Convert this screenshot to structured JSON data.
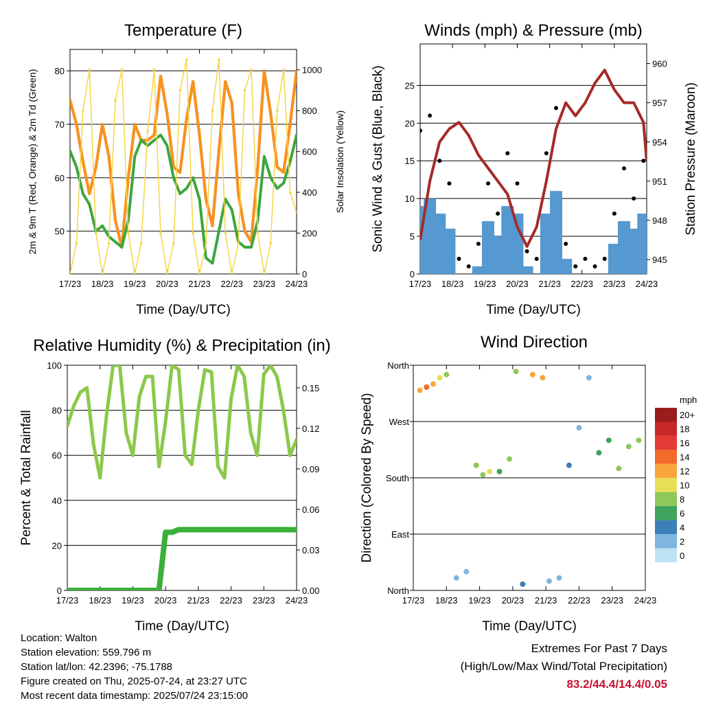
{
  "info": {
    "location": "Location: Walton",
    "elevation": "Station elevation: 559.796 m",
    "latlon": "Station lat/lon: 42.2396; -75.1788",
    "created": "Figure created on Thu, 2025-07-24, at 23:27 UTC",
    "recent": "Most recent data timestamp: 2025/07/24 23:15:00"
  },
  "extremes": {
    "title": "Extremes For Past 7 Days",
    "subtitle": "(High/Low/Max Wind/Total Precipitation)",
    "values": "83.2/44.4/14.4/0.05",
    "color": "#c8102e"
  },
  "x_ticks": [
    "17/23",
    "18/23",
    "19/23",
    "20/23",
    "21/23",
    "22/23",
    "23/23",
    "24/23"
  ],
  "x_label": "Time (Day/UTC)",
  "colorbar": {
    "unit": "mph",
    "labels": [
      "20+",
      "18",
      "16",
      "14",
      "12",
      "10",
      "8",
      "6",
      "4",
      "2",
      "0"
    ],
    "colors": [
      "#9b1c1c",
      "#c62828",
      "#e53935",
      "#f26b2a",
      "#f9a53c",
      "#e8df55",
      "#8fc85a",
      "#3ea35c",
      "#3d7fb8",
      "#7eb6df",
      "#bfe3f5"
    ]
  },
  "chart_data": [
    {
      "type": "line",
      "title": "Temperature (F)",
      "xlabel": "Time (Day/UTC)",
      "ylabel": "2m & 9m T (Red, Orange) & 2m Td (Green)",
      "y2label": "Solar Insolation (Yellow)",
      "ylim": [
        42,
        84
      ],
      "yticks": [
        "50",
        "60",
        "70",
        "80"
      ],
      "y2lim": [
        0,
        1100
      ],
      "y2ticks": [
        "0",
        "200",
        "400",
        "600",
        "800",
        "1000"
      ],
      "grid": true,
      "x": [
        0,
        0.2,
        0.4,
        0.6,
        0.8,
        1.0,
        1.2,
        1.4,
        1.6,
        1.8,
        2.0,
        2.2,
        2.4,
        2.6,
        2.8,
        3.0,
        3.2,
        3.4,
        3.6,
        3.8,
        4.0,
        4.2,
        4.4,
        4.6,
        4.8,
        5.0,
        5.2,
        5.4,
        5.6,
        5.8,
        6.0,
        6.2,
        6.4,
        6.6,
        6.8,
        7.0
      ],
      "series": [
        {
          "color": "#d62728",
          "values": [
            74.5,
            70,
            63,
            57,
            62,
            70,
            64,
            52,
            47,
            60,
            70,
            67,
            67,
            68,
            79,
            72,
            62,
            61,
            71,
            78,
            68,
            56,
            51,
            65,
            78,
            74,
            57,
            50,
            48,
            62,
            80,
            72,
            62,
            61,
            70,
            80
          ]
        },
        {
          "color": "#f7941d",
          "values": [
            74.5,
            70,
            63,
            57,
            62,
            70,
            64,
            52,
            47,
            60,
            70,
            67,
            67,
            68,
            79,
            72,
            62,
            61,
            71,
            78,
            68,
            56,
            51,
            65,
            78,
            74,
            57,
            50,
            48,
            62,
            80,
            72,
            62,
            61,
            70,
            80
          ]
        },
        {
          "color": "#3da63d",
          "values": [
            65,
            62,
            57,
            55,
            50,
            51,
            49,
            48,
            47,
            52,
            64,
            67,
            66,
            67,
            68,
            66,
            60,
            57,
            58,
            60,
            56,
            45,
            44,
            50,
            56,
            54,
            48,
            47,
            47,
            52,
            64,
            60,
            58,
            59,
            63,
            68
          ]
        },
        {
          "color": "#f5d547",
          "axis": "y2",
          "values": [
            0,
            150,
            800,
            1000,
            200,
            0,
            150,
            850,
            1000,
            200,
            0,
            150,
            700,
            1000,
            200,
            0,
            150,
            900,
            1050,
            200,
            0,
            150,
            800,
            1050,
            200,
            0,
            150,
            900,
            1000,
            200,
            0,
            150,
            800,
            1000,
            400,
            300
          ]
        }
      ]
    },
    {
      "type": "scatter",
      "title": "Winds (mph) & Pressure (mb)",
      "xlabel": "Time (Day/UTC)",
      "ylabel": "Sonic Wind & Gust (Blue, Black)",
      "y2label": "Station Pressure (Maroon)",
      "ylim": [
        0,
        30.5
      ],
      "yticks": [
        "0",
        "5",
        "10",
        "15",
        "20",
        "25"
      ],
      "y2lim": [
        943.9,
        961.5
      ],
      "y2ticks": [
        "945",
        "948",
        "951",
        "954",
        "957",
        "960"
      ],
      "grid": true,
      "series": [
        {
          "name": "gust",
          "color": "#000000",
          "x": [
            0,
            0.3,
            0.6,
            0.9,
            1.2,
            1.5,
            1.8,
            2.1,
            2.4,
            2.7,
            3.0,
            3.3,
            3.6,
            3.9,
            4.2,
            4.5,
            4.8,
            5.1,
            5.4,
            5.7,
            6.0,
            6.3,
            6.6,
            6.9
          ],
          "values": [
            19,
            21,
            15,
            12,
            2,
            1,
            4,
            12,
            8,
            16,
            12,
            3,
            2,
            16,
            22,
            4,
            1,
            2,
            1,
            2,
            8,
            14,
            10,
            15
          ]
        },
        {
          "name": "wind",
          "color": "#5599d0",
          "x": [
            0,
            0.3,
            0.6,
            0.9,
            1.2,
            1.5,
            1.8,
            2.1,
            2.4,
            2.7,
            3.0,
            3.3,
            3.6,
            3.9,
            4.2,
            4.5,
            4.8,
            5.1,
            5.4,
            5.7,
            6.0,
            6.3,
            6.6,
            6.9
          ],
          "values": [
            9,
            10,
            8,
            6,
            0,
            0,
            1,
            7,
            5,
            9,
            8,
            1,
            0,
            8,
            11,
            2,
            0,
            0,
            0,
            0,
            4,
            7,
            6,
            8
          ]
        },
        {
          "name": "pressure",
          "color": "#a52a2a",
          "axis": "y2",
          "x": [
            0,
            0.3,
            0.6,
            0.9,
            1.2,
            1.5,
            1.8,
            2.1,
            2.4,
            2.7,
            3.0,
            3.3,
            3.6,
            3.9,
            4.2,
            4.5,
            4.8,
            5.1,
            5.4,
            5.7,
            6.0,
            6.3,
            6.6,
            6.9,
            7.0
          ],
          "values": [
            946.5,
            951,
            954,
            955,
            955.5,
            954.5,
            953,
            952,
            951,
            950,
            947.5,
            946,
            947.5,
            951,
            955,
            957,
            956,
            957,
            958.5,
            959.5,
            958,
            957,
            957,
            955.5,
            952.5
          ]
        }
      ]
    },
    {
      "type": "line",
      "title": "Relative Humidity (%) & Precipitation (in)",
      "xlabel": "Time (Day/UTC)",
      "ylabel": "Percent & Total Rainfall",
      "ylim": [
        0,
        100
      ],
      "yticks": [
        "0",
        "20",
        "40",
        "60",
        "80",
        "100"
      ],
      "y2lim": [
        0,
        0.1667
      ],
      "y2ticks": [
        "0.00",
        "0.03",
        "0.06",
        "0.09",
        "0.12",
        "0.15"
      ],
      "grid": true,
      "x": [
        0,
        0.2,
        0.4,
        0.6,
        0.8,
        1.0,
        1.2,
        1.4,
        1.6,
        1.8,
        2.0,
        2.2,
        2.4,
        2.6,
        2.8,
        3.0,
        3.2,
        3.4,
        3.6,
        3.8,
        4.0,
        4.2,
        4.4,
        4.6,
        4.8,
        5.0,
        5.2,
        5.4,
        5.6,
        5.8,
        6.0,
        6.2,
        6.4,
        6.6,
        6.8,
        7.0
      ],
      "series": [
        {
          "color": "#8cc84b",
          "values": [
            73,
            82,
            88,
            90,
            65,
            50,
            78,
            100,
            100,
            70,
            60,
            86,
            95,
            95,
            55,
            75,
            100,
            98,
            60,
            56,
            80,
            98,
            97,
            55,
            50,
            85,
            100,
            95,
            70,
            60,
            96,
            100,
            95,
            80,
            60,
            67
          ]
        },
        {
          "color": "#3ab03a",
          "axis": "y2",
          "values": [
            0,
            0,
            0,
            0,
            0,
            0,
            0,
            0,
            0,
            0,
            0,
            0,
            0,
            0,
            0,
            0.043,
            0.043,
            0.045,
            0.045,
            0.045,
            0.045,
            0.045,
            0.045,
            0.045,
            0.045,
            0.045,
            0.045,
            0.045,
            0.045,
            0.045,
            0.045,
            0.045,
            0.045,
            0.045,
            0.045,
            0.045
          ]
        }
      ]
    },
    {
      "type": "scatter",
      "title": "Wind Direction",
      "xlabel": "Time (Day/UTC)",
      "ylabel": "Direction (Colored By Speed)",
      "yticks": [
        "North",
        "East",
        "South",
        "West",
        "North"
      ],
      "ylim": [
        0,
        360
      ],
      "legend": "colorbar right",
      "x": [
        0.2,
        0.4,
        0.6,
        0.8,
        1.0,
        1.3,
        1.6,
        1.9,
        2.1,
        2.3,
        2.6,
        2.9,
        3.1,
        3.3,
        3.6,
        3.9,
        4.1,
        4.4,
        4.7,
        5.0,
        5.3,
        5.6,
        5.9,
        6.2,
        6.5,
        6.8
      ],
      "values": [
        320,
        325,
        330,
        340,
        345,
        20,
        30,
        200,
        185,
        190,
        190,
        210,
        350,
        10,
        345,
        340,
        15,
        20,
        200,
        260,
        340,
        220,
        240,
        195,
        230,
        240
      ],
      "speeds": [
        12,
        13,
        11,
        9,
        7,
        1,
        2,
        8,
        8,
        9,
        6,
        7,
        7,
        3,
        12,
        11,
        2,
        1,
        3,
        2,
        2,
        6,
        6,
        7,
        8,
        7
      ]
    }
  ]
}
